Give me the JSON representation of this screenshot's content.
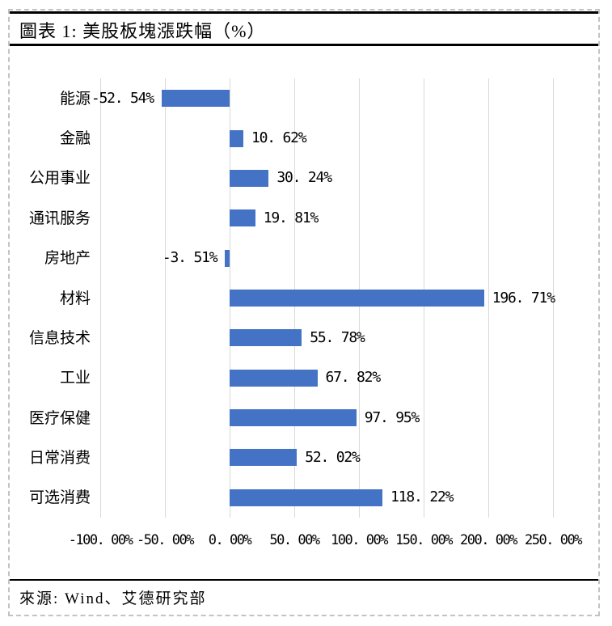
{
  "figure": {
    "title": "圖表 1: 美股板塊漲跌幅（%）",
    "source": "來源: Wind、艾德研究部"
  },
  "chart_data": {
    "type": "bar",
    "orientation": "horizontal",
    "title": "圖表 1: 美股板塊漲跌幅（%）",
    "categories": [
      "能源",
      "金融",
      "公用事业",
      "通讯服务",
      "房地产",
      "材料",
      "信息技术",
      "工业",
      "医疗保健",
      "日常消费",
      "可选消费"
    ],
    "values": [
      -52.54,
      10.62,
      30.24,
      19.81,
      -3.51,
      196.71,
      55.78,
      67.82,
      97.95,
      52.02,
      118.22
    ],
    "value_labels": [
      "-52. 54%",
      "10. 62%",
      "30. 24%",
      "19. 81%",
      "-3. 51%",
      "196. 71%",
      "55. 78%",
      "67. 82%",
      "97. 95%",
      "52. 02%",
      "118. 22%"
    ],
    "x_tick_values": [
      -100,
      -50,
      0,
      50,
      100,
      150,
      200,
      250
    ],
    "x_tick_labels": [
      "-100. 00%",
      "-50. 00%",
      "0. 00%",
      "50. 00%",
      "100. 00%",
      "150. 00%",
      "200. 00%",
      "250. 00%"
    ],
    "xlim": [
      -100,
      250
    ],
    "grid": true,
    "legend": false,
    "bar_color": "#4472C4",
    "gridline_color": "#D9D9D9"
  }
}
